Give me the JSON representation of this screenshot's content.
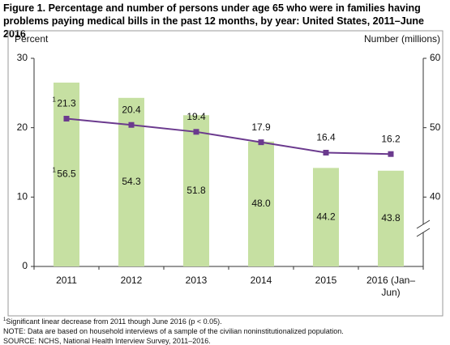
{
  "chart_data": {
    "type": "bar-line",
    "title": "Figure 1. Percentage and number of persons under age 65 who were in families having problems paying medical bills in the past 12 months, by year: United States, 2011–June 2016",
    "ylabel": "Percent",
    "y2label": "Number (millions)",
    "categories": [
      "2011",
      "2012",
      "2013",
      "2014",
      "2015",
      "2016 (Jan–Jun)"
    ],
    "ylim": [
      0,
      30
    ],
    "yticks": [
      0,
      10,
      20,
      30
    ],
    "y2lim": [
      30,
      60
    ],
    "y2ticks": [
      40,
      50,
      60
    ],
    "series": [
      {
        "type": "bar",
        "axis": "y2",
        "color": "#c6e0a2",
        "values": [
          56.5,
          54.3,
          51.8,
          48.0,
          44.2,
          43.8
        ],
        "value_labels": [
          "56.5",
          "54.3",
          "51.8",
          "48.0",
          "44.2",
          "43.8"
        ]
      },
      {
        "type": "line",
        "color": "#6b3a8e",
        "values": [
          21.3,
          20.4,
          19.4,
          17.9,
          16.4,
          16.2
        ]
      }
    ],
    "footnote_marker": "1",
    "notes": [
      "Significant linear decrease from 2011 though June 2016 (p < 0.05).",
      "NOTE: Data are based on household interviews of a sample of the civilian noninstitutionalized population.",
      "SOURCE: NCHS, National Health Interview Survey, 2011–2016."
    ]
  }
}
